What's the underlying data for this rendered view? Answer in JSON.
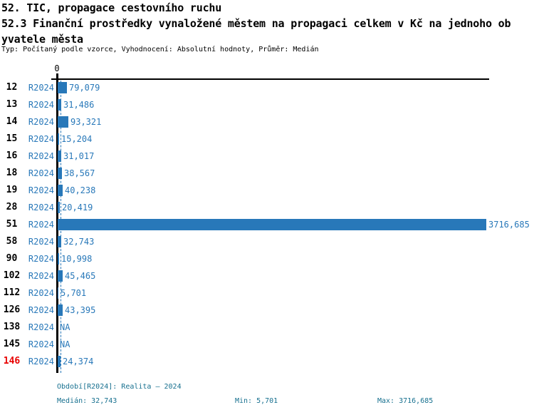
{
  "header": {
    "title_line1": "52. TIC, propagace cestovního ruchu",
    "title_line2": "52.3 Finanční prostředky vynaložené městem na propagaci celkem v Kč na jednoho ob",
    "title_line3": "yvatele města",
    "meta": "Typ: Počítaný podle vzorce, Vyhodnocení: Absolutní hodnoty, Průměr: Medián"
  },
  "chart_data": {
    "type": "bar",
    "orientation": "horizontal",
    "title": "52.3 Finanční prostředky vynaložené městem na propagaci celkem v Kč na jednoho obyvatele města",
    "unit": "Kč na jednoho obyvatele",
    "axis_zero_label": "0",
    "xmax": 3716.685,
    "median": 32.743,
    "min": 5.701,
    "max": 3716.685,
    "legend_position": "none",
    "grid": false,
    "colors": {
      "bar": "#2878b9",
      "median_line": "#2878b9",
      "text_blue": "#2878b9",
      "footer_teal": "#17708f",
      "highlight_red": "#e80000"
    },
    "rows": [
      {
        "id": "12",
        "period": "R2024",
        "value": 79.079,
        "value_label": "79,079",
        "highlight": false
      },
      {
        "id": "13",
        "period": "R2024",
        "value": 31.486,
        "value_label": "31,486",
        "highlight": false
      },
      {
        "id": "14",
        "period": "R2024",
        "value": 93.321,
        "value_label": "93,321",
        "highlight": false
      },
      {
        "id": "15",
        "period": "R2024",
        "value": 15.204,
        "value_label": "15,204",
        "highlight": false
      },
      {
        "id": "16",
        "period": "R2024",
        "value": 31.017,
        "value_label": "31,017",
        "highlight": false
      },
      {
        "id": "18",
        "period": "R2024",
        "value": 38.567,
        "value_label": "38,567",
        "highlight": false
      },
      {
        "id": "19",
        "period": "R2024",
        "value": 40.238,
        "value_label": "40,238",
        "highlight": false
      },
      {
        "id": "28",
        "period": "R2024",
        "value": 20.419,
        "value_label": "20,419",
        "highlight": false
      },
      {
        "id": "51",
        "period": "R2024",
        "value": 3716.685,
        "value_label": "3716,685",
        "highlight": false
      },
      {
        "id": "58",
        "period": "R2024",
        "value": 32.743,
        "value_label": "32,743",
        "highlight": false
      },
      {
        "id": "90",
        "period": "R2024",
        "value": 10.998,
        "value_label": "10,998",
        "highlight": false
      },
      {
        "id": "102",
        "period": "R2024",
        "value": 45.465,
        "value_label": "45,465",
        "highlight": false
      },
      {
        "id": "112",
        "period": "R2024",
        "value": 5.701,
        "value_label": "5,701",
        "highlight": false
      },
      {
        "id": "126",
        "period": "R2024",
        "value": 43.395,
        "value_label": "43,395",
        "highlight": false
      },
      {
        "id": "138",
        "period": "R2024",
        "value": null,
        "value_label": "NA",
        "highlight": false
      },
      {
        "id": "145",
        "period": "R2024",
        "value": null,
        "value_label": "NA",
        "highlight": false
      },
      {
        "id": "146",
        "period": "R2024",
        "value": 24.374,
        "value_label": "24,374",
        "highlight": true
      }
    ]
  },
  "footer": {
    "period_info": "Období[R2024]: Realita – 2024",
    "median_label": "Medián: 32,743",
    "min_label": "Min: 5,701",
    "max_label": "Max: 3716,685"
  }
}
